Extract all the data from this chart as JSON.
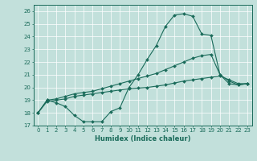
{
  "xlabel": "Humidex (Indice chaleur)",
  "xlim": [
    -0.5,
    23.5
  ],
  "ylim": [
    17,
    26.5
  ],
  "yticks": [
    17,
    18,
    19,
    20,
    21,
    22,
    23,
    24,
    25,
    26
  ],
  "xticks": [
    0,
    1,
    2,
    3,
    4,
    5,
    6,
    7,
    8,
    9,
    10,
    11,
    12,
    13,
    14,
    15,
    16,
    17,
    18,
    19,
    20,
    21,
    22,
    23
  ],
  "bg_color": "#c2e0db",
  "line_color": "#1a6b5a",
  "line1_x": [
    0,
    1,
    2,
    3,
    4,
    5,
    6,
    7,
    8,
    9,
    10,
    11,
    12,
    13,
    14,
    15,
    16,
    17,
    18,
    19,
    20,
    21,
    22,
    23
  ],
  "line1_y": [
    18.0,
    19.0,
    18.8,
    18.5,
    17.8,
    17.3,
    17.3,
    17.3,
    18.1,
    18.4,
    20.0,
    21.0,
    22.2,
    23.3,
    24.8,
    25.7,
    25.8,
    25.6,
    24.2,
    24.1,
    21.0,
    20.3,
    20.2,
    20.3
  ],
  "line2_x": [
    0,
    1,
    2,
    3,
    4,
    5,
    6,
    7,
    8,
    9,
    10,
    11,
    12,
    13,
    14,
    15,
    16,
    17,
    18,
    19,
    20,
    21,
    22,
    23
  ],
  "line2_y": [
    18.0,
    19.0,
    19.1,
    19.3,
    19.5,
    19.6,
    19.7,
    19.9,
    20.1,
    20.3,
    20.5,
    20.7,
    20.9,
    21.1,
    21.4,
    21.7,
    22.0,
    22.3,
    22.5,
    22.6,
    21.0,
    20.5,
    20.2,
    20.3
  ],
  "line3_x": [
    0,
    1,
    2,
    3,
    4,
    5,
    6,
    7,
    8,
    9,
    10,
    11,
    12,
    13,
    14,
    15,
    16,
    17,
    18,
    19,
    20,
    21,
    22,
    23
  ],
  "line3_y": [
    18.0,
    18.9,
    19.0,
    19.1,
    19.3,
    19.4,
    19.5,
    19.6,
    19.7,
    19.8,
    19.9,
    19.95,
    20.0,
    20.1,
    20.2,
    20.35,
    20.5,
    20.6,
    20.7,
    20.8,
    20.9,
    20.6,
    20.3,
    20.3
  ]
}
